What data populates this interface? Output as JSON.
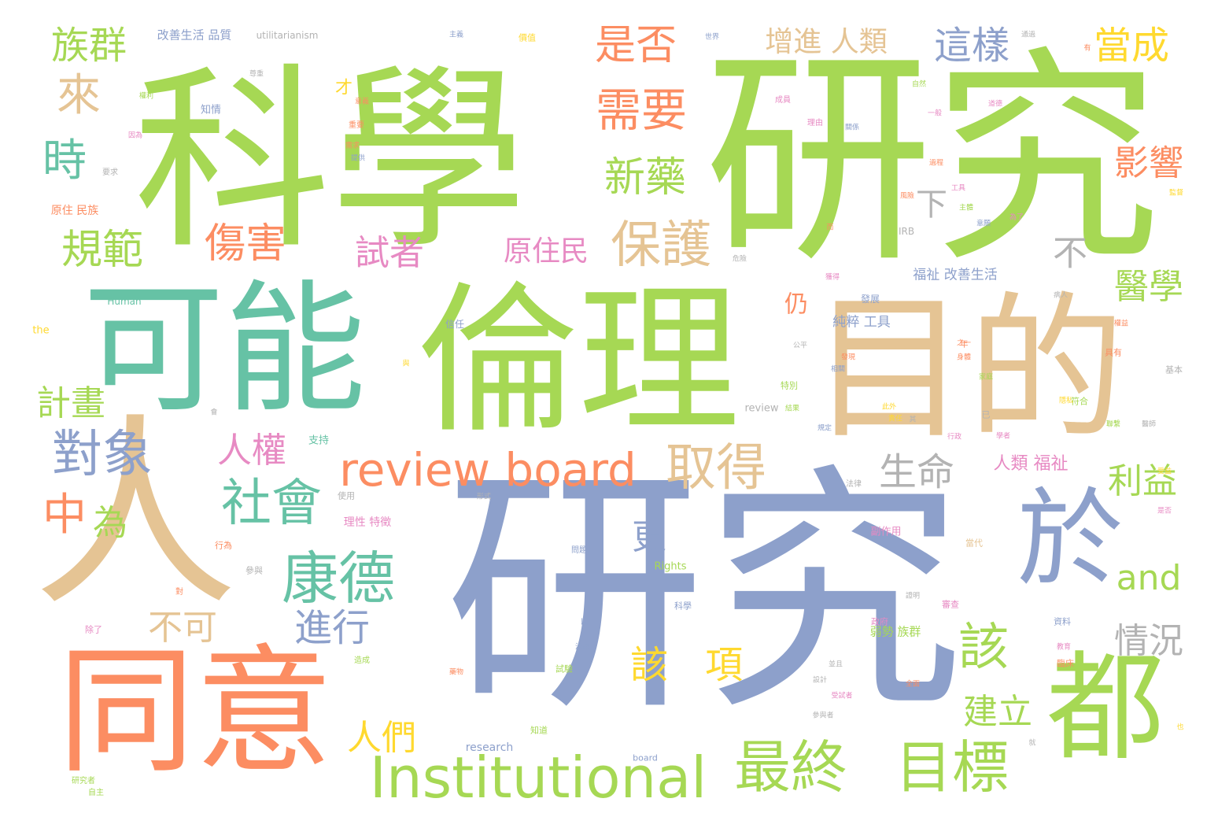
{
  "palette": {
    "green": "#a6d854",
    "blue": "#8da0cb",
    "orange": "#fc8d62",
    "teal": "#66c2a5",
    "tan": "#e5c494",
    "pink": "#e78ac3",
    "gray": "#b3b3b3",
    "yellow": "#ffd92f"
  },
  "words": {
    "kexue": "科學",
    "yanjiu_top": "研究",
    "yanjiu_big": "研究",
    "keneng": "可能",
    "lunli": "倫理",
    "mudi": "目的",
    "ren": "人",
    "tongyi": "同意",
    "yu": "於",
    "dou": "都",
    "institutional": "Institutional",
    "review_board": "review board",
    "zuizhong": "最終",
    "mubiao": "目標",
    "kangde": "康德",
    "shehui": "社會",
    "duixiang": "對象",
    "baohu": "保護",
    "qude": "取得",
    "xuyao": "需要",
    "xinyao": "新藥",
    "shifou": "是否",
    "shangai": "傷害",
    "guifan": "規範",
    "zuqun": "族群",
    "lai": "來",
    "shi": "時",
    "zhong": "中",
    "wei": "為",
    "renquan": "人權",
    "jihua": "計畫",
    "buke": "不可",
    "jinxing": "進行",
    "gai": "該",
    "xiang": "項",
    "gai2": "該",
    "renmen": "人們",
    "shengming": "生命",
    "gai3": "更",
    "shizhe": "試者",
    "yuanzhumin": "原住民",
    "zengjin": "增進 人類",
    "zheyang": "這樣",
    "dangcheng": "當成",
    "yingxiang": "影響",
    "yixue": "醫學",
    "liyi": "利益",
    "and": "and",
    "qingkuang": "情況",
    "jianli": "建立",
    "bu": "不",
    "xia": "下",
    "reng": "仍",
    "cai": "才",
    "renlei_fuzhi": "人類 福祉",
    "chuncui": "純粹 工具",
    "fuzhi_gaishan": "福祉 改善生活",
    "gaishan_pinzhi": "改善生活 品質",
    "utilitarianism": "utilitarianism",
    "zhiqing": "知情",
    "yuanzhu_minzu": "原住 民族",
    "human": "Human",
    "the": "the",
    "rights": "Rights",
    "review_small": "review",
    "research": "research",
    "board_small": "board",
    "irb": "IRB",
    "chengyuan": "成員",
    "liyou": "理由",
    "fazhan": "發展",
    "xinren": "信任",
    "zhichi": "支持",
    "lixing_tezheng": "理性 特徵",
    "ruoshi_zuqun": "弱勢 族群",
    "fuzuoyong": "副作用",
    "zhengfu": "政府",
    "ziliao": "資料",
    "zhengfu2": "科學",
    "shiyong": "使用",
    "xingwei": "行為",
    "canyu": "參與",
    "falv": "法律",
    "tebie": "特別",
    "yiwu": "除了",
    "zizhu": "自主",
    "yanjiuzhe": "研究者",
    "zhidao": "知道",
    "shenmi": "審查",
    "linchuang": "臨床",
    "jiben": "基本",
    "fuhe": "符合",
    "juyou": "具有",
    "dangdai": "當代",
    "wenti": "問題",
    "zaocheng": "造成",
    "yaoqiu": "要求",
    "dui": "對",
    "zhongyao": "重要",
    "yinwei": "因為",
    "xuqiu": "需求",
    "tixin": "提供",
    "quanli": "權利",
    "zunzhong": "尊重",
    "yiyi": "意義",
    "zhuyi": "主義",
    "jiazhi": "價值",
    "zhengque": "正確",
    "shijie": "世界",
    "tongguo": "通過",
    "ziran": "自然",
    "guanxi": "關係",
    "yiban": "一般",
    "guocheng": "過程",
    "gongju": "工具",
    "daode": "道德",
    "jiandu": "監督",
    "bingren": "病人",
    "huode": "獲得",
    "zhuti": "主體",
    "yiyuan": "意願",
    "quanyi": "權益",
    "yishi": "醫師",
    "fazhan2": "發現",
    "xinshi": "形式",
    "weixian": "危險",
    "yinsi": "隱私",
    "fengxian": "風險",
    "zeren": "責任",
    "gongping": "公平",
    "xiangguan": "相關",
    "jieguo": "結果",
    "canyuzhe": "參與者",
    "zhiyi": "之一",
    "xueze": "學者",
    "shouyi": "受益",
    "jiaoyu": "教育",
    "shiyan": "試驗",
    "yaowu": "藥物",
    "zhiliao": "治療",
    "nian": "年",
    "shenti": "身體",
    "jiating": "家庭",
    "xingzheng": "行政",
    "ciwai": "此外",
    "yijing": "已",
    "lianxi": "聯繫",
    "guiding": "規定",
    "shifu": "是否",
    "zhengming": "證明",
    "quanmian": "全面",
    "bingqie": "並且",
    "shezhi": "設計",
    "shouzhe": "受試者",
    "hui": "會",
    "yi": "以",
    "yu2": "與",
    "er": "而",
    "qi": "其",
    "ci": "此",
    "you": "有",
    "wei2": "為了",
    "jiu": "就",
    "ye": "也"
  }
}
